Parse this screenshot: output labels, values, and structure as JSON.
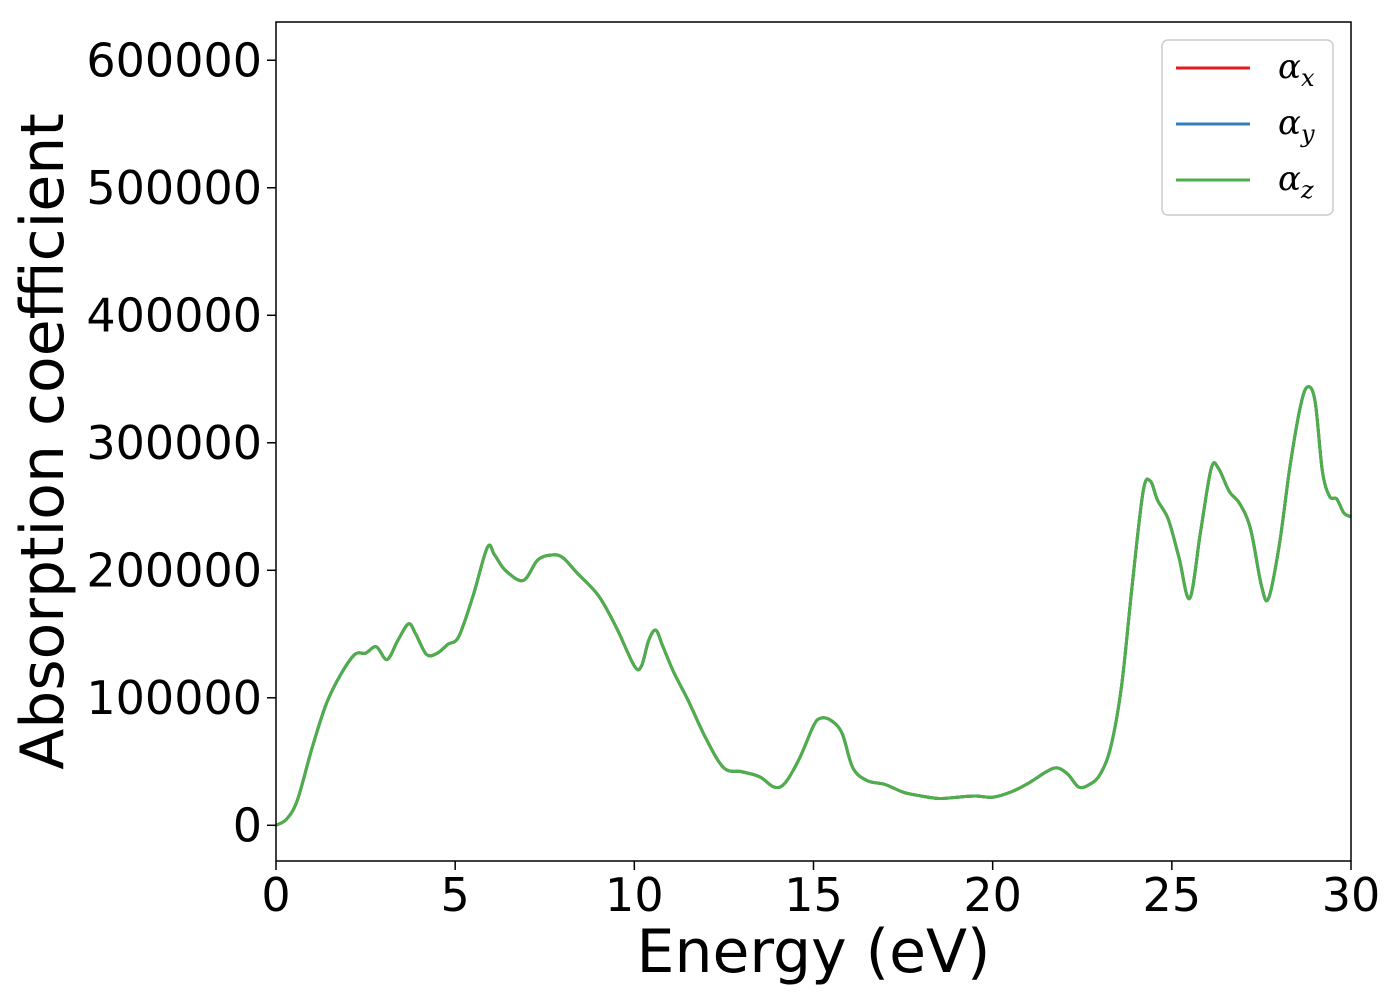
{
  "chart_data": {
    "type": "line",
    "title": "",
    "xlabel": "Energy (eV)",
    "ylabel": "Absorption coefficient",
    "xlim": [
      0,
      30
    ],
    "ylim": [
      -28000,
      630000
    ],
    "x_ticks": [
      0,
      5,
      10,
      15,
      20,
      25,
      30
    ],
    "x_tick_labels": [
      "0",
      "5",
      "10",
      "15",
      "20",
      "25",
      "30"
    ],
    "y_ticks": [
      0,
      100000,
      200000,
      300000,
      400000,
      500000,
      600000
    ],
    "y_tick_labels": [
      "0",
      "100000",
      "200000",
      "300000",
      "400000",
      "500000",
      "600000"
    ],
    "grid": false,
    "legend_position": "top-right",
    "x": [
      0,
      0.3,
      0.6,
      1.0,
      1.4,
      1.8,
      2.2,
      2.5,
      2.8,
      3.1,
      3.4,
      3.7,
      3.9,
      4.2,
      4.5,
      4.8,
      5.1,
      5.5,
      5.9,
      6.1,
      6.4,
      6.9,
      7.3,
      7.7,
      8.0,
      8.4,
      9.0,
      9.5,
      10.0,
      10.2,
      10.4,
      10.6,
      10.8,
      11.1,
      11.5,
      12.0,
      12.5,
      13.0,
      13.5,
      13.9,
      14.2,
      14.6,
      15.0,
      15.2,
      15.5,
      15.8,
      16.1,
      16.5,
      17.0,
      17.5,
      18.0,
      18.5,
      19.0,
      19.5,
      20.0,
      20.5,
      21.0,
      21.5,
      21.8,
      22.1,
      22.4,
      22.7,
      23.0,
      23.3,
      23.6,
      23.9,
      24.2,
      24.4,
      24.6,
      24.9,
      25.2,
      25.5,
      25.8,
      26.1,
      26.3,
      26.6,
      26.9,
      27.2,
      27.5,
      27.7,
      28.0,
      28.3,
      28.6,
      28.8,
      29.0,
      29.2,
      29.4,
      29.6,
      29.8,
      30.0
    ],
    "series": [
      {
        "name": "α_x",
        "color": "#e41a1c",
        "values": [
          0,
          5000,
          20000,
          60000,
          95000,
          118000,
          134000,
          135000,
          140000,
          130000,
          145000,
          158000,
          150000,
          134000,
          135000,
          142000,
          148000,
          180000,
          218000,
          212000,
          200000,
          192000,
          208000,
          212000,
          210000,
          198000,
          180000,
          155000,
          125000,
          125000,
          145000,
          153000,
          140000,
          120000,
          98000,
          68000,
          45000,
          42000,
          38000,
          30000,
          33000,
          52000,
          78000,
          84000,
          82000,
          72000,
          45000,
          35000,
          32000,
          26000,
          23000,
          21000,
          22000,
          23000,
          22000,
          26000,
          33000,
          42000,
          45000,
          40000,
          30000,
          32000,
          40000,
          62000,
          110000,
          190000,
          262000,
          270000,
          255000,
          240000,
          210000,
          178000,
          230000,
          280000,
          280000,
          262000,
          252000,
          232000,
          188000,
          178000,
          220000,
          282000,
          330000,
          344000,
          332000,
          278000,
          258000,
          256000,
          245000,
          242000
        ]
      },
      {
        "name": "α_y",
        "color": "#377eb8",
        "values": [
          0,
          5000,
          20000,
          60000,
          95000,
          118000,
          134000,
          135000,
          140000,
          130000,
          145000,
          158000,
          150000,
          134000,
          135000,
          142000,
          148000,
          180000,
          218000,
          212000,
          200000,
          192000,
          208000,
          212000,
          210000,
          198000,
          180000,
          155000,
          125000,
          125000,
          145000,
          153000,
          140000,
          120000,
          98000,
          68000,
          45000,
          42000,
          38000,
          30000,
          33000,
          52000,
          78000,
          84000,
          82000,
          72000,
          45000,
          35000,
          32000,
          26000,
          23000,
          21000,
          22000,
          23000,
          22000,
          26000,
          33000,
          42000,
          45000,
          40000,
          30000,
          32000,
          40000,
          62000,
          110000,
          190000,
          262000,
          270000,
          255000,
          240000,
          210000,
          178000,
          230000,
          280000,
          280000,
          262000,
          252000,
          232000,
          188000,
          178000,
          220000,
          282000,
          330000,
          344000,
          332000,
          278000,
          258000,
          256000,
          245000,
          242000
        ]
      },
      {
        "name": "α_z",
        "color": "#4daf4a",
        "values": [
          0,
          5000,
          20000,
          60000,
          95000,
          118000,
          134000,
          135000,
          140000,
          130000,
          145000,
          158000,
          150000,
          134000,
          135000,
          142000,
          148000,
          180000,
          218000,
          212000,
          200000,
          192000,
          208000,
          212000,
          210000,
          198000,
          180000,
          155000,
          125000,
          125000,
          145000,
          153000,
          140000,
          120000,
          98000,
          68000,
          45000,
          42000,
          38000,
          30000,
          33000,
          52000,
          78000,
          84000,
          82000,
          72000,
          45000,
          35000,
          32000,
          26000,
          23000,
          21000,
          22000,
          23000,
          22000,
          26000,
          33000,
          42000,
          45000,
          40000,
          30000,
          32000,
          40000,
          62000,
          110000,
          190000,
          262000,
          270000,
          255000,
          240000,
          210000,
          178000,
          230000,
          280000,
          280000,
          262000,
          252000,
          232000,
          188000,
          178000,
          220000,
          282000,
          330000,
          344000,
          332000,
          278000,
          258000,
          256000,
          245000,
          242000
        ]
      }
    ],
    "legend": [
      {
        "symbol": "α",
        "subscript": "x",
        "color": "#e41a1c"
      },
      {
        "symbol": "α",
        "subscript": "y",
        "color": "#377eb8"
      },
      {
        "symbol": "α",
        "subscript": "z",
        "color": "#4daf4a"
      }
    ]
  }
}
